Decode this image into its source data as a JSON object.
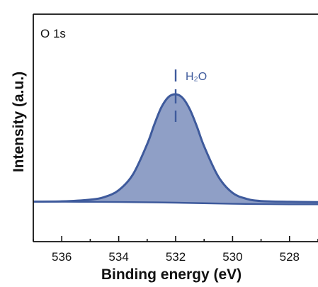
{
  "chart_data": {
    "type": "area",
    "panel_label": "O 1s",
    "xlabel": "Binding energy (eV)",
    "ylabel": "Intensity (a.u.)",
    "xlim": [
      537,
      527
    ],
    "x_reversed": true,
    "x_ticks": [
      536,
      534,
      532,
      530,
      528
    ],
    "y_ticks": [],
    "grid": false,
    "series": [
      {
        "name": "",
        "color": "#3e5a9c",
        "fill": "#8f9fc6",
        "x": [
          537.0,
          536.0,
          535.0,
          534.5,
          534.0,
          533.5,
          533.0,
          532.75,
          532.5,
          532.25,
          532.0,
          531.75,
          531.5,
          531.25,
          531.0,
          530.5,
          530.0,
          529.5,
          529.0,
          528.0,
          527.0
        ],
        "y": [
          0.01,
          0.012,
          0.028,
          0.052,
          0.115,
          0.26,
          0.54,
          0.72,
          0.88,
          0.975,
          1.0,
          0.965,
          0.86,
          0.7,
          0.52,
          0.24,
          0.09,
          0.035,
          0.015,
          0.008,
          0.005
        ]
      }
    ],
    "background_line": {
      "color": "#3e5a9c",
      "x": [
        537.0,
        534.0,
        532.0,
        530.0,
        528.0,
        527.0
      ],
      "y": [
        0.01,
        0.006,
        0.0,
        -0.01,
        -0.015,
        -0.015
      ]
    },
    "annotations": [
      {
        "text": "H₂O",
        "x": 532.0,
        "color": "#3e5a9c"
      }
    ]
  }
}
